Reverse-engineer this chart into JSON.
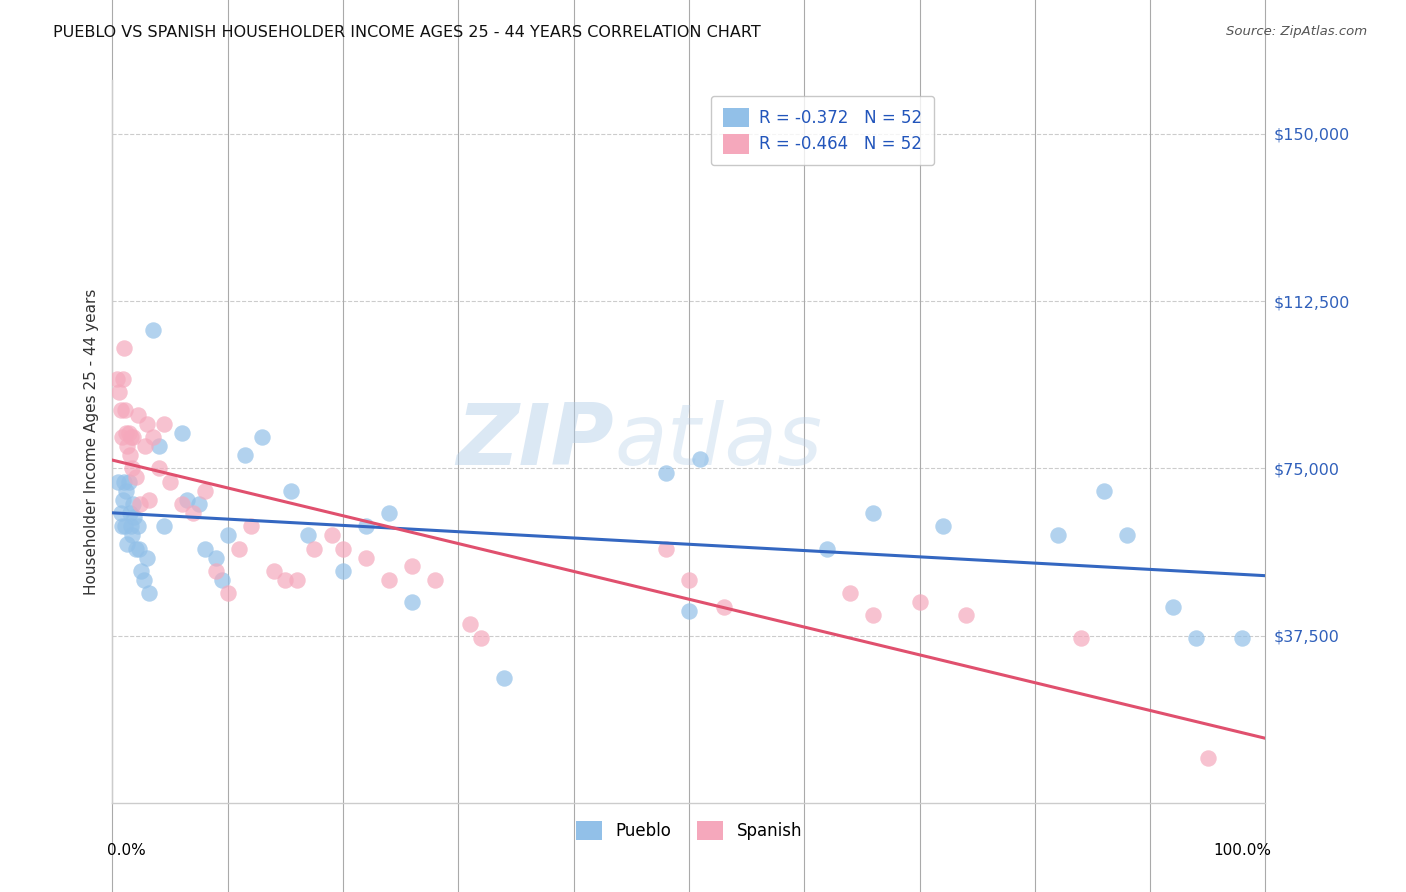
{
  "title": "PUEBLO VS SPANISH HOUSEHOLDER INCOME AGES 25 - 44 YEARS CORRELATION CHART",
  "source": "Source: ZipAtlas.com",
  "ylabel": "Householder Income Ages 25 - 44 years",
  "pueblo_color": "#92c0e8",
  "spanish_color": "#f5a8bc",
  "pueblo_line_color": "#3467c1",
  "spanish_line_color": "#e0506e",
  "pueblo_R": -0.372,
  "pueblo_N": 52,
  "spanish_R": -0.464,
  "spanish_N": 52,
  "ytick_vals": [
    0,
    37500,
    75000,
    112500,
    150000
  ],
  "ytick_labels": [
    "",
    "$37,500",
    "$75,000",
    "$112,500",
    "$150,000"
  ],
  "xlim": [
    0.0,
    1.0
  ],
  "ylim": [
    0,
    162000
  ],
  "pueblo_x": [
    0.005,
    0.007,
    0.008,
    0.009,
    0.01,
    0.011,
    0.012,
    0.013,
    0.014,
    0.015,
    0.016,
    0.017,
    0.018,
    0.019,
    0.02,
    0.022,
    0.023,
    0.025,
    0.027,
    0.03,
    0.032,
    0.035,
    0.04,
    0.045,
    0.06,
    0.065,
    0.075,
    0.08,
    0.09,
    0.095,
    0.1,
    0.115,
    0.13,
    0.155,
    0.17,
    0.2,
    0.22,
    0.24,
    0.26,
    0.34,
    0.48,
    0.5,
    0.51,
    0.62,
    0.66,
    0.72,
    0.82,
    0.86,
    0.88,
    0.92,
    0.94,
    0.98
  ],
  "pueblo_y": [
    72000,
    65000,
    62000,
    68000,
    72000,
    62000,
    70000,
    58000,
    72000,
    65000,
    62000,
    60000,
    67000,
    64000,
    57000,
    62000,
    57000,
    52000,
    50000,
    55000,
    47000,
    106000,
    80000,
    62000,
    83000,
    68000,
    67000,
    57000,
    55000,
    50000,
    60000,
    78000,
    82000,
    70000,
    60000,
    52000,
    62000,
    65000,
    45000,
    28000,
    74000,
    43000,
    77000,
    57000,
    65000,
    62000,
    60000,
    70000,
    60000,
    44000,
    37000,
    37000
  ],
  "spanish_x": [
    0.004,
    0.006,
    0.007,
    0.008,
    0.009,
    0.01,
    0.011,
    0.012,
    0.013,
    0.014,
    0.015,
    0.016,
    0.017,
    0.018,
    0.02,
    0.022,
    0.024,
    0.028,
    0.03,
    0.032,
    0.035,
    0.04,
    0.045,
    0.05,
    0.06,
    0.07,
    0.08,
    0.09,
    0.1,
    0.11,
    0.12,
    0.14,
    0.15,
    0.16,
    0.175,
    0.19,
    0.2,
    0.22,
    0.24,
    0.26,
    0.28,
    0.31,
    0.32,
    0.48,
    0.5,
    0.53,
    0.64,
    0.66,
    0.7,
    0.74,
    0.84,
    0.95
  ],
  "spanish_y": [
    95000,
    92000,
    88000,
    82000,
    95000,
    102000,
    88000,
    83000,
    80000,
    83000,
    78000,
    82000,
    75000,
    82000,
    73000,
    87000,
    67000,
    80000,
    85000,
    68000,
    82000,
    75000,
    85000,
    72000,
    67000,
    65000,
    70000,
    52000,
    47000,
    57000,
    62000,
    52000,
    50000,
    50000,
    57000,
    60000,
    57000,
    55000,
    50000,
    53000,
    50000,
    40000,
    37000,
    57000,
    50000,
    44000,
    47000,
    42000,
    45000,
    42000,
    37000,
    10000
  ]
}
